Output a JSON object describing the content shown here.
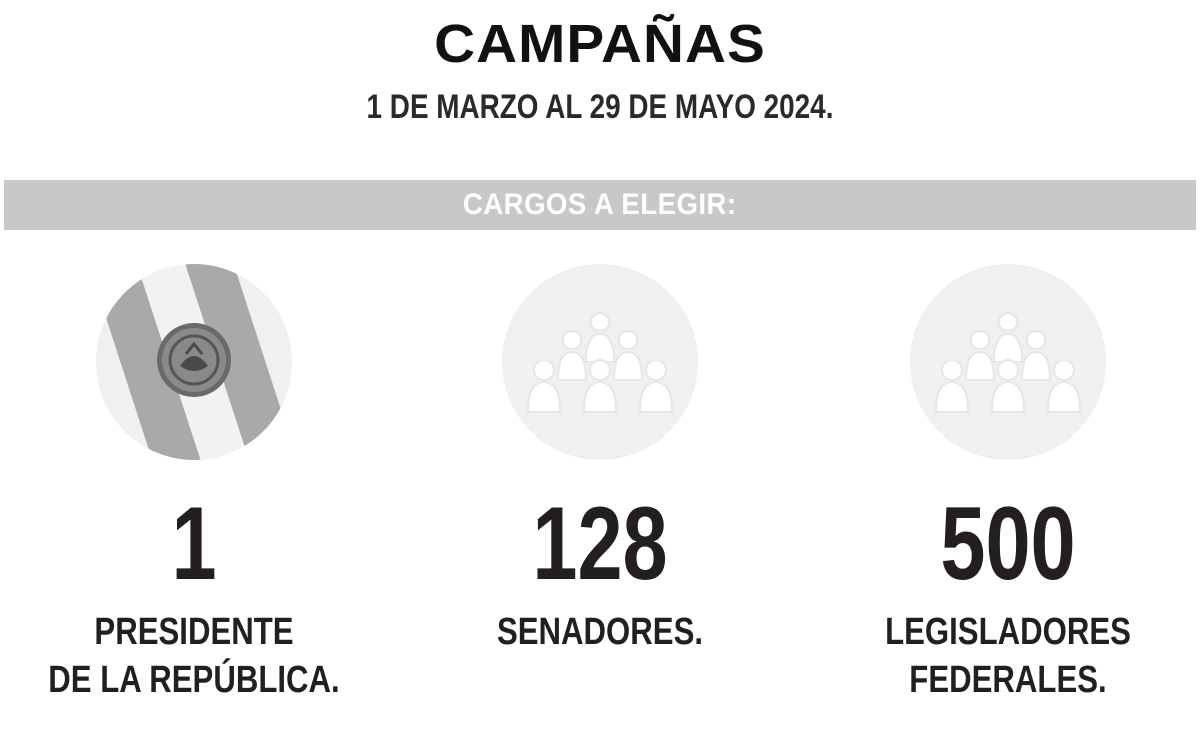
{
  "header": {
    "title": "CAMPAÑAS",
    "subtitle": "1 DE MARZO AL 29 DE MAYO 2024."
  },
  "band": {
    "label": "CARGOS A ELEGIR:",
    "color": "#c8c8c8"
  },
  "positions": [
    {
      "icon": "presidential-sash-icon",
      "number": "1",
      "label_line1": "PRESIDENTE",
      "label_line2": "DE LA REPÚBLICA."
    },
    {
      "icon": "senators-group-icon",
      "number": "128",
      "label_line1": "SENADORES.",
      "label_line2": ""
    },
    {
      "icon": "legislators-group-icon",
      "number": "500",
      "label_line1": "LEGISLADORES",
      "label_line2": "FEDERALES."
    }
  ],
  "colors": {
    "text": "#231f20",
    "circle": "#f0f0f0",
    "sash": "#a8a8a8"
  }
}
